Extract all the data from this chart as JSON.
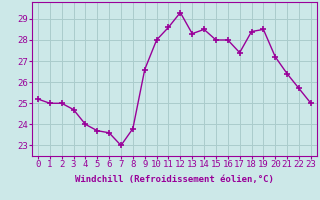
{
  "x": [
    0,
    1,
    2,
    3,
    4,
    5,
    6,
    7,
    8,
    9,
    10,
    11,
    12,
    13,
    14,
    15,
    16,
    17,
    18,
    19,
    20,
    21,
    22,
    23
  ],
  "y": [
    25.2,
    25.0,
    25.0,
    24.7,
    24.0,
    23.7,
    23.6,
    23.0,
    23.8,
    26.6,
    28.0,
    28.6,
    29.3,
    28.3,
    28.5,
    28.0,
    28.0,
    27.4,
    28.4,
    28.5,
    27.2,
    26.4,
    25.7,
    25.0
  ],
  "line_color": "#990099",
  "marker": "+",
  "marker_size": 4,
  "bg_color": "#cce8e8",
  "grid_color": "#aacccc",
  "ylabel_ticks": [
    23,
    24,
    25,
    26,
    27,
    28,
    29
  ],
  "ylim": [
    22.5,
    29.8
  ],
  "xlim": [
    -0.5,
    23.5
  ],
  "xlabel": "Windchill (Refroidissement éolien,°C)",
  "xlabel_fontsize": 6.5,
  "tick_fontsize": 6.5,
  "line_width": 1.0
}
